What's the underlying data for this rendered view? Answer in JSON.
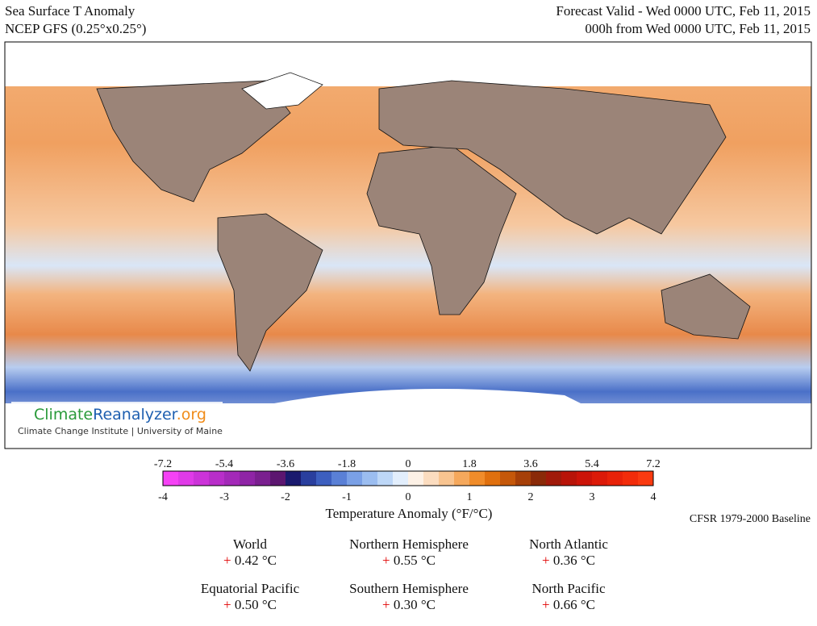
{
  "header": {
    "title": "Sea Surface T Anomaly",
    "subtitle": "NCEP GFS (0.25°x0.25°)",
    "valid": "Forecast Valid - Wed 0000 UTC, Feb 11, 2015",
    "init": "000h from Wed 0000 UTC, Feb 11, 2015"
  },
  "logo": {
    "part1": "Climate",
    "part2": "Reanalyzer",
    "part3": ".org",
    "tagline": "Climate Change Institute | University of Maine"
  },
  "colorbar": {
    "label": "Temperature Anomaly (°F/°C)",
    "baseline": "CFSR 1979-2000 Baseline",
    "fahrenheit_range": [
      -7.2,
      7.2
    ],
    "fahrenheit_ticks": [
      -7.2,
      -5.4,
      -3.6,
      -1.8,
      0,
      1.8,
      3.6,
      5.4,
      7.2
    ],
    "celsius_range": [
      -4,
      4
    ],
    "celsius_ticks": [
      -4,
      -3,
      -2,
      -1,
      0,
      1,
      2,
      3,
      4
    ],
    "colors": [
      "#f542f5",
      "#e03ae8",
      "#cc33d9",
      "#b82ec9",
      "#a329b8",
      "#8f24a6",
      "#7a1f8f",
      "#5c1670",
      "#1a1a6e",
      "#2a3f9e",
      "#3d5fbf",
      "#5a80d6",
      "#7aa0e6",
      "#9bbdf0",
      "#bdd7f7",
      "#e2eefc",
      "#fdf1e6",
      "#fbdcbf",
      "#f8c490",
      "#f5a85c",
      "#f08c2a",
      "#e0700e",
      "#c5580a",
      "#a64008",
      "#8a2a08",
      "#a01a0a",
      "#b81408",
      "#cc1408",
      "#dc1a08",
      "#e82208",
      "#f22c0a",
      "#fa3a10"
    ]
  },
  "stats": [
    {
      "name": "World",
      "sign": "+",
      "value": "0.42 °C"
    },
    {
      "name": "Northern Hemisphere",
      "sign": "+",
      "value": "0.55 °C"
    },
    {
      "name": "North Atlantic",
      "sign": "+",
      "value": "0.36 °C"
    },
    {
      "name": "Equatorial Pacific",
      "sign": "+",
      "value": "0.50 °C"
    },
    {
      "name": "Southern Hemisphere",
      "sign": "+",
      "value": "0.30 °C"
    },
    {
      "name": "North Pacific",
      "sign": "+",
      "value": "0.66 °C"
    }
  ]
}
